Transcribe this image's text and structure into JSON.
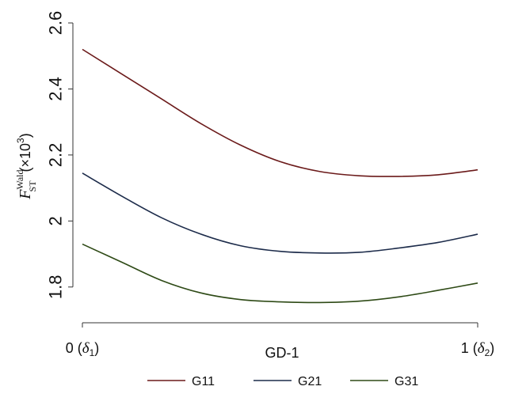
{
  "chart_data": {
    "type": "line",
    "xlabel": "GD-1",
    "ylabel": {
      "symbol": "F",
      "superscript": "Wald",
      "subscript": "ST",
      "scale": "(×10",
      "scale_exp": "3",
      "scale_close": ")"
    },
    "x_ticks": [
      {
        "value": 0,
        "label": "0 (",
        "greek": "δ",
        "sub": "1",
        "close": ")"
      },
      {
        "value": 1,
        "label": "1 (",
        "greek": "δ",
        "sub": "2",
        "close": ")"
      }
    ],
    "y_ticks": [
      {
        "value": 1.8,
        "label": "1.8"
      },
      {
        "value": 2.0,
        "label": "2"
      },
      {
        "value": 2.2,
        "label": "2.2"
      },
      {
        "value": 2.4,
        "label": "2.4"
      },
      {
        "value": 2.6,
        "label": "2.6"
      }
    ],
    "xlim": [
      0,
      1
    ],
    "ylim": [
      1.73,
      2.6
    ],
    "grid": false,
    "legend_position": "bottom",
    "x": [
      0,
      0.1,
      0.2,
      0.3,
      0.4,
      0.5,
      0.6,
      0.7,
      0.8,
      0.9,
      1.0
    ],
    "series": [
      {
        "name": "G11",
        "color": "#6b1a1a",
        "values": [
          2.52,
          2.445,
          2.37,
          2.295,
          2.23,
          2.18,
          2.15,
          2.137,
          2.135,
          2.14,
          2.155
        ]
      },
      {
        "name": "G21",
        "color": "#1c2b4a",
        "values": [
          2.145,
          2.075,
          2.01,
          1.96,
          1.925,
          1.908,
          1.903,
          1.905,
          1.918,
          1.935,
          1.96
        ]
      },
      {
        "name": "G31",
        "color": "#2e4a16",
        "values": [
          1.93,
          1.875,
          1.82,
          1.782,
          1.762,
          1.755,
          1.753,
          1.757,
          1.77,
          1.79,
          1.812
        ]
      }
    ]
  }
}
